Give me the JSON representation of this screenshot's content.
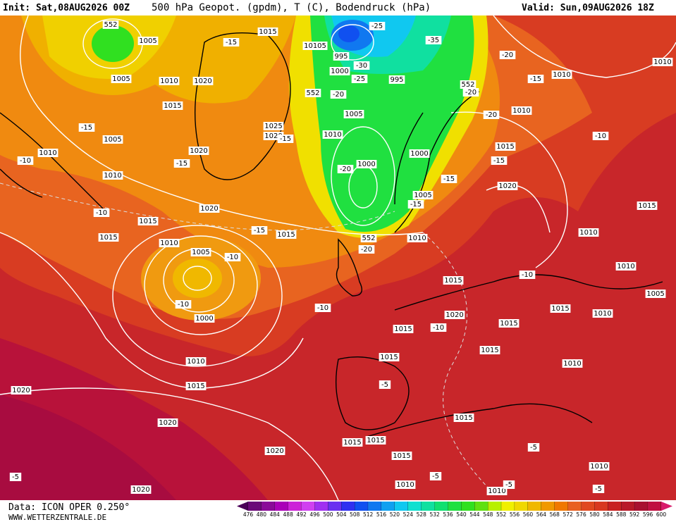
{
  "header": {
    "init": "Init: Sat,08AUG2026 00Z",
    "title": "500 hPa Geopot. (gpdm), T (C), Bodendruck (hPa)",
    "valid": "Valid: Sun,09AUG2026 18Z"
  },
  "footer": {
    "source": "Data: ICON OPER 0.250°",
    "site": "WWW.WETTERZENTRALE.DE"
  },
  "colorbar": {
    "ticks": [
      476,
      480,
      484,
      488,
      492,
      496,
      500,
      504,
      508,
      512,
      516,
      520,
      524,
      528,
      532,
      536,
      540,
      544,
      548,
      552,
      556,
      560,
      564,
      568,
      572,
      576,
      580,
      584,
      588,
      592,
      596,
      600
    ],
    "colors": [
      "#4a0058",
      "#6a0a78",
      "#8a0a98",
      "#aa00b8",
      "#cc22d8",
      "#d040f0",
      "#a030f0",
      "#6a30f0",
      "#3030f0",
      "#1050f0",
      "#1078f0",
      "#10a0f0",
      "#10c8f0",
      "#10e0d0",
      "#10e0a0",
      "#10e070",
      "#20e040",
      "#30e020",
      "#60e010",
      "#b8f000",
      "#f0f000",
      "#f0d800",
      "#f0b800",
      "#f09800",
      "#f07800",
      "#e86020",
      "#e04820",
      "#d83820",
      "#c82020",
      "#b81828",
      "#a81030",
      "#c01040",
      "#d81a6a"
    ]
  },
  "map": {
    "isobar_labels": [
      "1015",
      "1005",
      "1005",
      "1010",
      "1020",
      "1015",
      "1005",
      "1010",
      "1010",
      "1020",
      "1025",
      "1020",
      "1020",
      "1015",
      "1015",
      "1010",
      "1005",
      "1000",
      "1010",
      "1015",
      "1020",
      "1020",
      "1020",
      "1020",
      "1015",
      "10105",
      "995",
      "1000",
      "995",
      "1005",
      "1010",
      "1000",
      "1000",
      "1005",
      "1010",
      "1015",
      "1020",
      "1015",
      "1015",
      "1015",
      "1015",
      "1015",
      "1010",
      "1010",
      "1015",
      "1020",
      "1010",
      "1015",
      "1010",
      "1010",
      "1005",
      "1010",
      "1015",
      "1015",
      "1015",
      "1015",
      "1010",
      "1010",
      "1010",
      "1010"
    ],
    "temperature_labels": [
      "-15",
      "-25",
      "-35",
      "-30",
      "-25",
      "-20",
      "-20",
      "-15",
      "-20",
      "-20",
      "-15",
      "-10",
      "-15",
      "-15",
      "-20",
      "-15",
      "-15",
      "-15",
      "-10",
      "-15",
      "-10",
      "-10",
      "-10",
      "-20",
      "-10",
      "-10",
      "-10",
      "-5",
      "-5",
      "-5",
      "-5",
      "-5",
      "-5"
    ],
    "height_labels": [
      "552",
      "552",
      "552",
      "552"
    ]
  }
}
